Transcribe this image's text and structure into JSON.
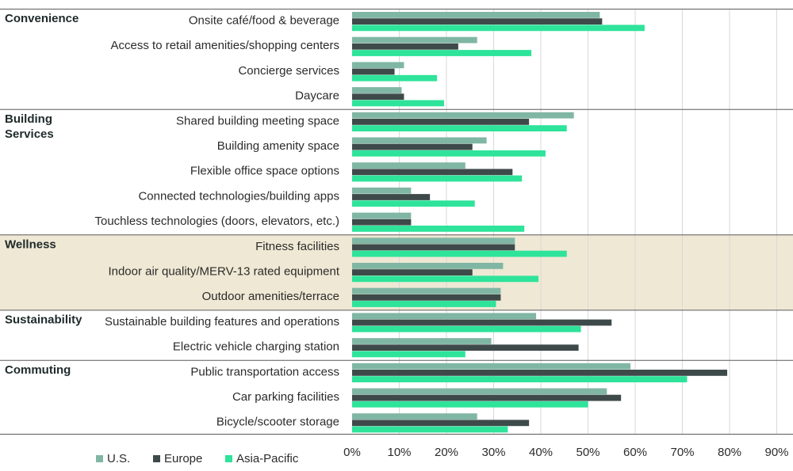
{
  "chart_data": {
    "type": "bar",
    "orientation": "horizontal",
    "title": "",
    "xlabel": "",
    "ylabel": "",
    "xlim": [
      0,
      90
    ],
    "xticks": [
      0,
      10,
      20,
      30,
      40,
      50,
      60,
      70,
      80,
      90
    ],
    "tick_format": "{v}%",
    "grid": true,
    "legend_position": "bottom-left",
    "colors": {
      "U.S.": "#80b6a4",
      "Europe": "#3e4a4a",
      "Asia-Pacific": "#2ee39a",
      "highlight_band": "#efe8d4",
      "rule": "#5a5a5a",
      "grid": "#d9d9d9"
    },
    "highlight_group": "Wellness",
    "series_names": [
      "U.S.",
      "Europe",
      "Asia-Pacific"
    ],
    "groups": [
      {
        "name": "Convenience",
        "name_lines": [
          "Convenience"
        ],
        "categories": [
          {
            "label": "Onsite café/food & beverage",
            "values": [
              52.5,
              53,
              62
            ]
          },
          {
            "label": "Access to retail amenities/shopping centers",
            "values": [
              26.5,
              22.5,
              38
            ]
          },
          {
            "label": "Concierge services",
            "values": [
              11,
              9,
              18
            ]
          },
          {
            "label": "Daycare",
            "values": [
              10.5,
              11,
              19.5
            ]
          }
        ]
      },
      {
        "name": "Building Services",
        "name_lines": [
          "Building",
          "Services"
        ],
        "categories": [
          {
            "label": "Shared building meeting space",
            "values": [
              47,
              37.5,
              45.5
            ]
          },
          {
            "label": "Building amenity space",
            "values": [
              28.5,
              25.5,
              41
            ]
          },
          {
            "label": "Flexible office space options",
            "values": [
              24,
              34,
              36
            ]
          },
          {
            "label": "Connected technologies/building apps",
            "values": [
              12.5,
              16.5,
              26
            ]
          },
          {
            "label": "Touchless technologies (doors, elevators, etc.)",
            "values": [
              12.5,
              12.5,
              36.5
            ]
          }
        ]
      },
      {
        "name": "Wellness",
        "name_lines": [
          "Wellness"
        ],
        "categories": [
          {
            "label": "Fitness facilities",
            "values": [
              34.5,
              34.5,
              45.5
            ]
          },
          {
            "label": "Indoor air quality/MERV-13 rated equipment",
            "values": [
              32,
              25.5,
              39.5
            ]
          },
          {
            "label": "Outdoor amenities/terrace",
            "values": [
              31.5,
              31.5,
              30.5
            ]
          }
        ]
      },
      {
        "name": "Sustainability",
        "name_lines": [
          "Sustainability"
        ],
        "categories": [
          {
            "label": "Sustainable building features and operations",
            "values": [
              39,
              55,
              48.5
            ]
          },
          {
            "label": "Electric vehicle charging station",
            "values": [
              29.5,
              48,
              24
            ]
          }
        ]
      },
      {
        "name": "Commuting",
        "name_lines": [
          "Commuting"
        ],
        "categories": [
          {
            "label": "Public transportation access",
            "values": [
              59,
              79.5,
              71
            ]
          },
          {
            "label": "Car parking facilities",
            "values": [
              54,
              57,
              50
            ]
          },
          {
            "label": "Bicycle/scooter storage",
            "values": [
              26.5,
              37.5,
              33
            ]
          }
        ]
      }
    ]
  }
}
